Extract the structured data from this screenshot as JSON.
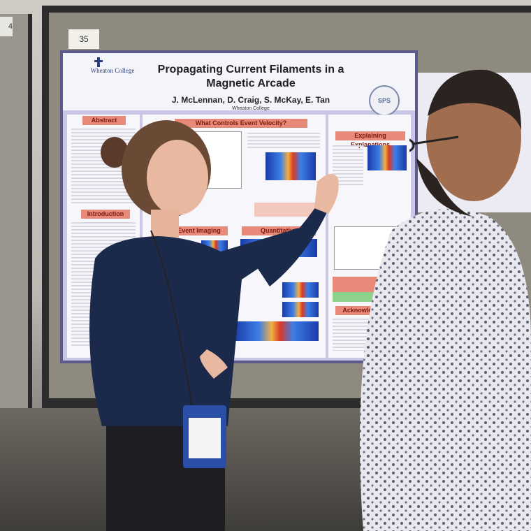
{
  "poster": {
    "board_number": "35",
    "side_card": "4",
    "title_line1": "Propagating Current Filaments in a",
    "title_line2": "Magnetic Arcade",
    "authors": "J. McLennan, D. Craig, S. McKay, E. Tan",
    "affiliation": "Wheaton College",
    "school_logo": "Wheaton College",
    "society_logo": "SPS",
    "sections": {
      "abstract": "Abstract",
      "velocity": "What Controls Event Velocity?",
      "explaining": "Explaining Explanations",
      "introduction": "Introduction",
      "event_imaging": "Event Imaging",
      "quantitative": "Quantitative",
      "acknowledgements": "Acknowledgments"
    }
  },
  "colors": {
    "poster_border": "#5b5a8a",
    "poster_background": "#c9c6e6",
    "section_banner": "#e88a7a",
    "woman_top": "#1b2a4a",
    "lanyard_badge": "#2b4ea6"
  }
}
